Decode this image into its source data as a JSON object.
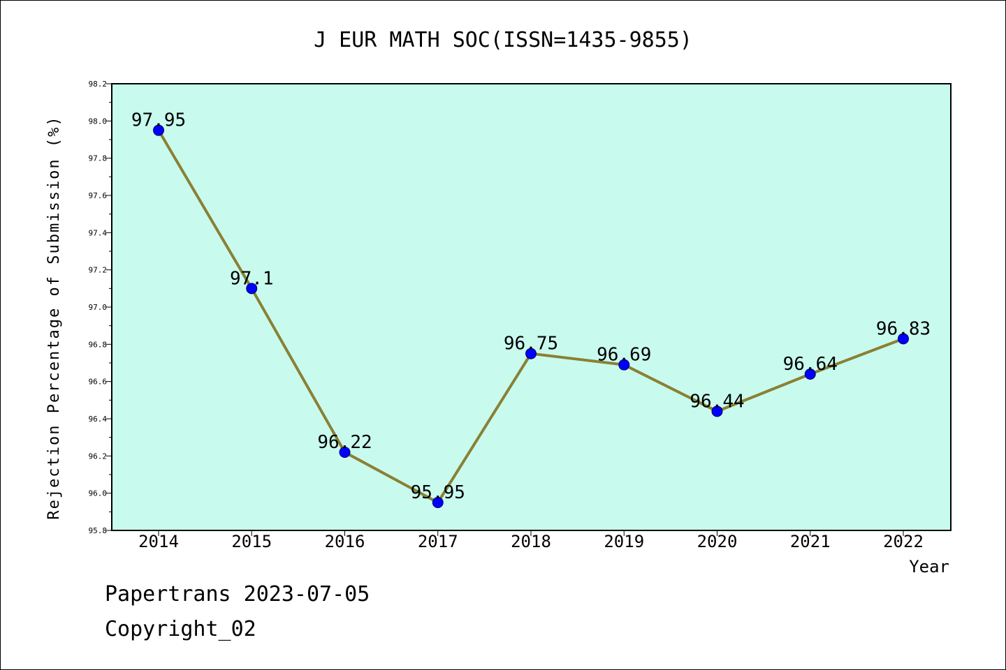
{
  "footer": {
    "line1": "Papertrans 2023-07-05",
    "line2": "Copyright_02"
  },
  "chart_data": {
    "type": "line",
    "title": "J EUR MATH SOC(ISSN=1435-9855)",
    "xlabel": "Year",
    "ylabel": "Rejection Percentage of Submission (%)",
    "x": [
      "2014",
      "2015",
      "2016",
      "2017",
      "2018",
      "2019",
      "2020",
      "2021",
      "2022"
    ],
    "series": [
      {
        "values": [
          97.95,
          97.1,
          96.22,
          95.95,
          96.75,
          96.69,
          96.44,
          96.64,
          96.83
        ],
        "labels": [
          "97.95",
          "97.1",
          "96.22",
          "95.95",
          "96.75",
          "96.69",
          "96.44",
          "96.64",
          "96.83"
        ]
      }
    ],
    "ylim": [
      95.8,
      98.2
    ],
    "yticks": [
      "95.8",
      "96.0",
      "96.2",
      "96.4",
      "96.6",
      "96.8",
      "97.0",
      "97.2",
      "97.4",
      "97.6",
      "97.8",
      "98.0",
      "98.2"
    ],
    "grid": false,
    "colors": {
      "plot_background": "#c8fbee",
      "line": "#8b8035",
      "marker": "#0000ff"
    }
  }
}
